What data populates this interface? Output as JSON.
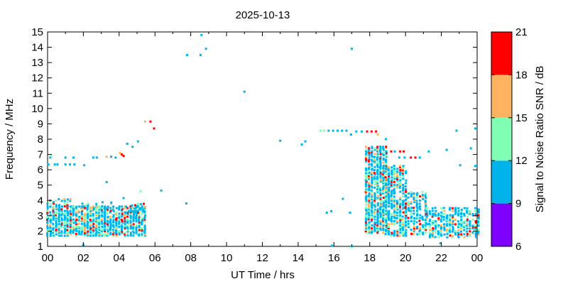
{
  "chart_data": {
    "type": "heatmap",
    "title": "2025-10-13",
    "xlabel": "UT Time / hrs",
    "ylabel": "Frequency / MHz",
    "colorbar_label": "Signal to Noise Ratio SNR / dB",
    "xlim": [
      0,
      24
    ],
    "ylim": [
      1,
      15
    ],
    "x_ticks": [
      "00",
      "02",
      "04",
      "06",
      "08",
      "10",
      "12",
      "14",
      "16",
      "18",
      "20",
      "22",
      "00"
    ],
    "y_ticks": [
      "1",
      "2",
      "3",
      "4",
      "5",
      "6",
      "7",
      "8",
      "9",
      "10",
      "11",
      "12",
      "13",
      "14",
      "15"
    ],
    "colorbar": {
      "range": [
        6,
        21
      ],
      "ticks": [
        "6",
        "9",
        "12",
        "15",
        "18",
        "21"
      ],
      "bins": [
        {
          "from": 6,
          "to": 9,
          "color": "#8000ff"
        },
        {
          "from": 9,
          "to": 12,
          "color": "#00b4eb"
        },
        {
          "from": 12,
          "to": 15,
          "color": "#80ffb4"
        },
        {
          "from": 15,
          "to": 18,
          "color": "#ffb360"
        },
        {
          "from": 18,
          "to": 21,
          "color": "#ff0000"
        }
      ]
    },
    "points": [
      [
        0.05,
        6.35,
        10
      ],
      [
        0.15,
        6.8,
        10
      ],
      [
        0.2,
        6.9,
        12
      ],
      [
        0.4,
        6.35,
        10
      ],
      [
        0.55,
        6.35,
        10
      ],
      [
        1.0,
        6.8,
        10
      ],
      [
        1.0,
        6.35,
        10
      ],
      [
        1.25,
        6.35,
        10
      ],
      [
        1.45,
        6.8,
        10
      ],
      [
        1.5,
        6.35,
        10
      ],
      [
        2.05,
        6.3,
        10
      ],
      [
        2.55,
        6.8,
        10
      ],
      [
        2.75,
        6.8,
        10
      ],
      [
        3.3,
        6.85,
        16
      ],
      [
        3.55,
        6.85,
        10
      ],
      [
        3.8,
        6.8,
        10
      ],
      [
        4.05,
        7.1,
        16
      ],
      [
        4.15,
        7.0,
        19
      ],
      [
        4.25,
        6.9,
        19
      ],
      [
        4.45,
        7.7,
        10
      ],
      [
        4.75,
        7.5,
        10
      ],
      [
        5.05,
        7.85,
        10
      ],
      [
        5.45,
        9.15,
        16
      ],
      [
        5.75,
        9.15,
        19
      ],
      [
        5.95,
        8.7,
        19
      ],
      [
        3.3,
        5.2,
        10
      ],
      [
        4.25,
        4.15,
        10
      ],
      [
        5.2,
        4.6,
        13
      ],
      [
        6.35,
        4.65,
        10
      ],
      [
        7.75,
        3.8,
        10
      ],
      [
        7.8,
        13.5,
        10
      ],
      [
        8.55,
        13.5,
        10
      ],
      [
        8.6,
        14.8,
        10
      ],
      [
        8.85,
        13.9,
        10
      ],
      [
        11.0,
        11.1,
        10
      ],
      [
        13.0,
        7.9,
        10
      ],
      [
        14.2,
        7.65,
        10
      ],
      [
        14.4,
        7.85,
        10
      ],
      [
        15.25,
        8.55,
        12
      ],
      [
        15.45,
        8.55,
        12
      ],
      [
        15.7,
        8.55,
        10
      ],
      [
        15.95,
        8.55,
        10
      ],
      [
        16.2,
        8.55,
        10
      ],
      [
        16.45,
        8.55,
        10
      ],
      [
        16.7,
        8.55,
        10
      ],
      [
        16.95,
        8.3,
        10
      ],
      [
        17.25,
        8.5,
        10
      ],
      [
        17.55,
        8.5,
        10
      ],
      [
        17.85,
        8.5,
        19
      ],
      [
        18.1,
        8.5,
        19
      ],
      [
        18.35,
        8.5,
        19
      ],
      [
        18.45,
        8.3,
        16
      ],
      [
        15.6,
        3.2,
        10
      ],
      [
        15.85,
        3.3,
        10
      ],
      [
        16.5,
        4.1,
        10
      ],
      [
        16.9,
        3.2,
        10
      ],
      [
        17.0,
        13.9,
        10
      ],
      [
        15.9,
        1.05,
        10
      ],
      [
        17.0,
        1.0,
        10
      ],
      [
        18.9,
        8.0,
        10
      ],
      [
        19.2,
        7.2,
        19
      ],
      [
        19.4,
        7.2,
        10
      ],
      [
        19.7,
        7.2,
        19
      ],
      [
        19.9,
        7.2,
        19
      ],
      [
        19.65,
        6.8,
        10
      ],
      [
        19.95,
        6.8,
        10
      ],
      [
        20.3,
        6.8,
        19
      ],
      [
        20.55,
        6.8,
        19
      ],
      [
        20.8,
        6.8,
        10
      ],
      [
        21.3,
        7.2,
        10
      ],
      [
        22.3,
        7.3,
        10
      ],
      [
        22.85,
        8.55,
        10
      ],
      [
        23.05,
        6.3,
        10
      ],
      [
        23.65,
        7.4,
        10
      ],
      [
        23.9,
        8.7,
        10
      ],
      [
        23.9,
        6.25,
        10
      ],
      [
        2.0,
        1.1,
        10
      ],
      [
        21.95,
        1.2,
        10
      ]
    ],
    "clusters": [
      {
        "x0": 0.0,
        "x1": 5.4,
        "y0": 1.7,
        "y1": 3.6,
        "density": 0.8
      },
      {
        "x0": 0.0,
        "x1": 1.3,
        "y0": 3.6,
        "y1": 4.1,
        "density": 0.35
      },
      {
        "x0": 1.3,
        "x1": 3.5,
        "y0": 3.4,
        "y1": 3.9,
        "density": 0.2
      },
      {
        "x0": 4.4,
        "x1": 5.4,
        "y0": 3.2,
        "y1": 3.8,
        "density": 0.4
      },
      {
        "x0": 17.8,
        "x1": 18.9,
        "y0": 1.9,
        "y1": 7.5,
        "density": 0.8
      },
      {
        "x0": 18.9,
        "x1": 20.0,
        "y0": 1.7,
        "y1": 6.3,
        "density": 0.65
      },
      {
        "x0": 20.0,
        "x1": 21.2,
        "y0": 1.8,
        "y1": 4.6,
        "density": 0.55
      },
      {
        "x0": 21.2,
        "x1": 24.0,
        "y0": 1.6,
        "y1": 3.5,
        "density": 0.55
      }
    ]
  }
}
